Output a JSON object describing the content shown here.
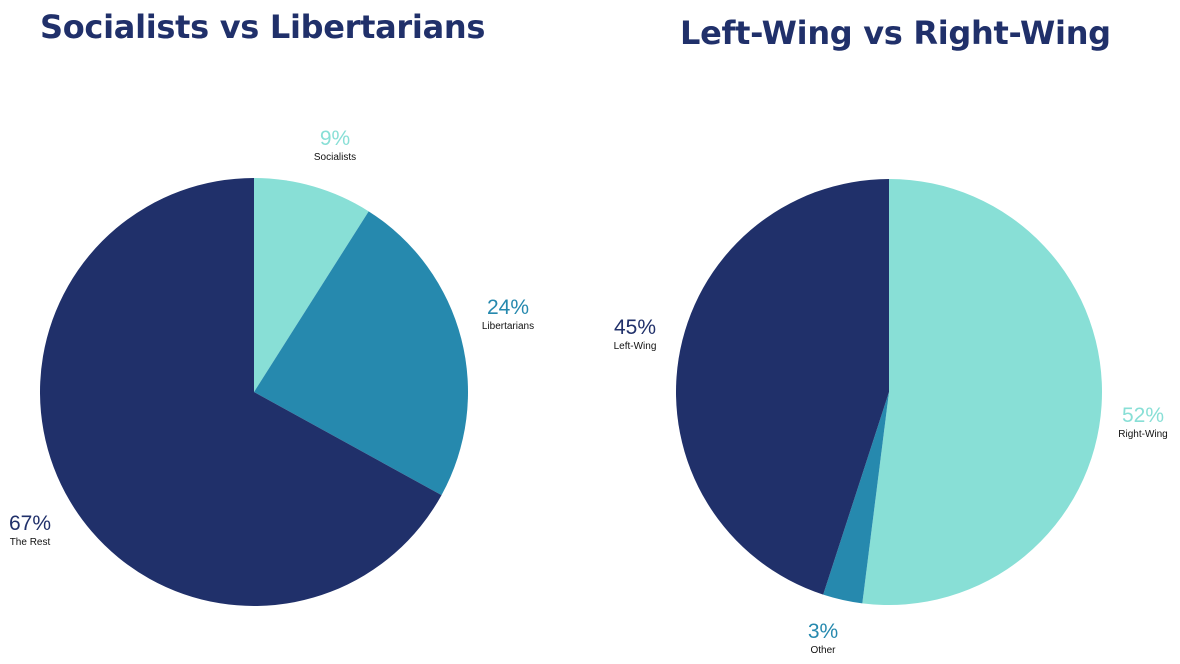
{
  "chart_data": [
    {
      "type": "pie",
      "title": "Socialists vs Libertarians",
      "slices": [
        {
          "label": "Socialists",
          "value": 9,
          "display": "9%",
          "color": "#88dfd6"
        },
        {
          "label": "Libertarians",
          "value": 24,
          "display": "24%",
          "color": "#2689ae"
        },
        {
          "label": "The Rest",
          "value": 67,
          "display": "67%",
          "color": "#20306a"
        }
      ]
    },
    {
      "type": "pie",
      "title": "Left-Wing vs Right-Wing",
      "slices": [
        {
          "label": "Right-Wing",
          "value": 52,
          "display": "52%",
          "color": "#88dfd6"
        },
        {
          "label": "Other",
          "value": 3,
          "display": "3%",
          "color": "#2689ae"
        },
        {
          "label": "Left-Wing",
          "value": 45,
          "display": "45%",
          "color": "#20306a"
        }
      ]
    }
  ]
}
